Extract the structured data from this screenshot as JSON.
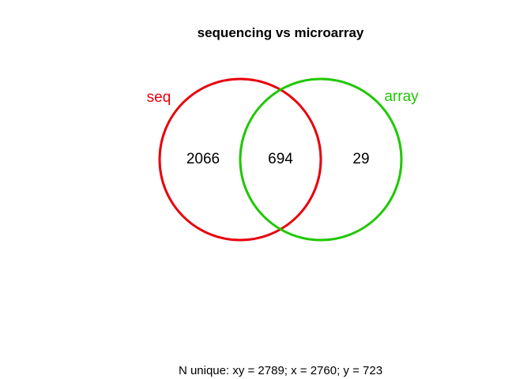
{
  "title": "sequencing vs microarray",
  "sets": [
    {
      "name": "seq",
      "color": "#e8000b"
    },
    {
      "name": "array",
      "color": "#1ec800"
    }
  ],
  "regions": {
    "seq_only": "2066",
    "intersection": "694",
    "array_only": "29"
  },
  "footer": "N unique: xy = 2789; x = 2760; y = 723"
}
